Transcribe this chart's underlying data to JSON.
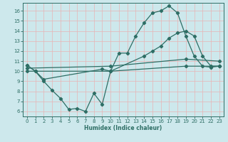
{
  "line1_x": [
    0,
    1,
    2,
    3,
    4,
    5,
    6,
    7,
    8,
    9,
    10,
    11,
    12,
    13,
    14,
    15,
    16,
    17,
    18,
    19,
    20,
    21,
    22,
    23
  ],
  "line1_y": [
    10.6,
    10.0,
    9.0,
    8.1,
    7.3,
    6.2,
    6.3,
    6.0,
    7.8,
    6.7,
    10.0,
    11.8,
    11.8,
    13.5,
    14.8,
    15.8,
    16.0,
    16.5,
    15.8,
    13.5,
    11.5,
    10.5,
    10.4,
    10.5
  ],
  "line2_x": [
    0,
    1,
    2,
    9,
    10,
    14,
    15,
    16,
    17,
    18,
    19,
    20,
    21,
    22,
    23
  ],
  "line2_y": [
    10.6,
    10.0,
    9.2,
    10.2,
    10.0,
    11.5,
    12.0,
    12.5,
    13.3,
    13.8,
    14.0,
    13.5,
    11.5,
    10.5,
    10.5
  ],
  "line3_x": [
    0,
    10,
    19,
    23
  ],
  "line3_y": [
    10.3,
    10.5,
    11.2,
    11.0
  ],
  "line4_x": [
    0,
    10,
    19,
    23
  ],
  "line4_y": [
    10.0,
    10.0,
    10.5,
    10.5
  ],
  "color": "#2e6e65",
  "bg_color": "#cde8ec",
  "grid_color_major": "#e8b4b4",
  "xlabel": "Humidex (Indice chaleur)",
  "xlim": [
    -0.5,
    23.5
  ],
  "ylim": [
    5.5,
    16.8
  ],
  "yticks": [
    6,
    7,
    8,
    9,
    10,
    11,
    12,
    13,
    14,
    15,
    16
  ],
  "xticks": [
    0,
    1,
    2,
    3,
    4,
    5,
    6,
    7,
    8,
    9,
    10,
    11,
    12,
    13,
    14,
    15,
    16,
    17,
    18,
    19,
    20,
    21,
    22,
    23
  ]
}
